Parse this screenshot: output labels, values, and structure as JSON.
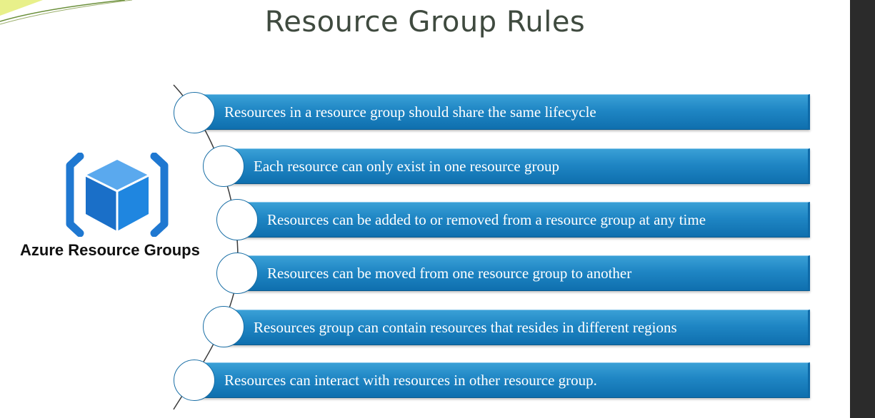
{
  "slide": {
    "title": "Resource Group Rules",
    "logo_label": "Azure Resource Groups",
    "logo_icon": "resource-group-cube-icon",
    "accent_color": "#1f86c4",
    "rules": [
      "Resources in a resource group should share the same lifecycle",
      "Each resource can only exist in one resource group",
      "Resources can be added to or removed from a resource group at any time",
      "Resources can be moved from one resource group to another",
      "Resources group can contain resources that resides in different regions",
      "Resources can interact with resources in other resource group."
    ]
  }
}
